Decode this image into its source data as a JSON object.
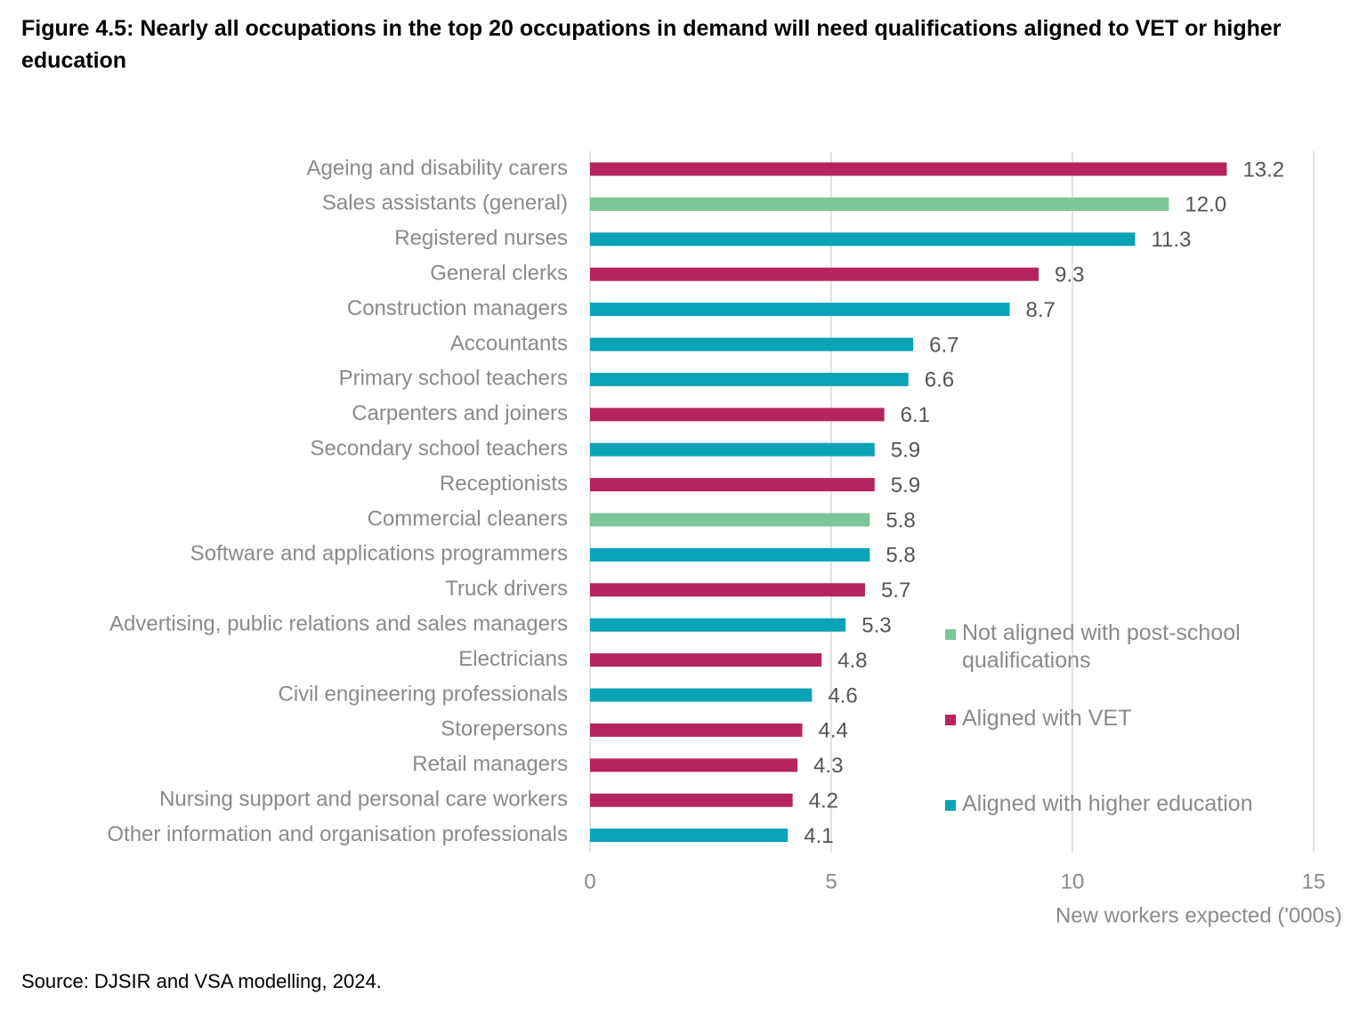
{
  "chart_data": {
    "type": "hbar",
    "title": "Figure 4.5:  Nearly all occupations in the top 20 occupations in demand will need qualifications aligned to VET or higher education",
    "source": "Source: DJSIR and VSA modelling, 2024.",
    "x_label": "New workers expected ('000s)",
    "categories": [
      "Ageing and disability carers",
      "Sales assistants (general)",
      "Registered nurses",
      "General clerks",
      "Construction managers",
      "Accountants",
      "Primary school teachers",
      "Carpenters and joiners",
      "Secondary school teachers",
      "Receptionists",
      "Commercial cleaners",
      "Software and applications programmers",
      "Truck drivers",
      "Advertising, public relations and sales managers",
      "Electricians",
      "Civil engineering professionals",
      "Storepersons",
      "Retail managers",
      "Nursing support and personal care workers",
      "Other information and organisation professionals"
    ],
    "series": [
      {
        "name": "Not aligned with post-school qualifications",
        "color": "#7cc596",
        "values": [
          null,
          12.0,
          null,
          null,
          null,
          null,
          null,
          null,
          null,
          null,
          5.8,
          null,
          null,
          null,
          null,
          null,
          null,
          null,
          null,
          null
        ],
        "value_labels": [
          null,
          "12.0",
          null,
          null,
          null,
          null,
          null,
          null,
          null,
          null,
          "5.8",
          null,
          null,
          null,
          null,
          null,
          null,
          null,
          null,
          null
        ]
      },
      {
        "name": "Aligned with VET",
        "color": "#b5245e",
        "values": [
          13.2,
          null,
          null,
          9.3,
          null,
          null,
          null,
          6.1,
          null,
          5.9,
          null,
          null,
          5.7,
          null,
          4.8,
          null,
          4.4,
          4.3,
          4.2,
          null
        ],
        "value_labels": [
          "13.2",
          null,
          null,
          "9.3",
          null,
          null,
          null,
          "6.1",
          null,
          "5.9",
          null,
          null,
          "5.7",
          null,
          "4.8",
          null,
          "4.4",
          "4.3",
          "4.2",
          null
        ]
      },
      {
        "name": "Aligned with higher education",
        "color": "#0aa2b5",
        "values": [
          null,
          null,
          11.3,
          null,
          8.7,
          6.7,
          6.6,
          null,
          5.9,
          null,
          null,
          5.8,
          null,
          5.3,
          null,
          4.6,
          null,
          null,
          null,
          4.1
        ],
        "value_labels": [
          null,
          null,
          "11.3",
          null,
          "8.7",
          "6.7",
          "6.6",
          null,
          "5.9",
          null,
          null,
          "5.8",
          null,
          "5.3",
          null,
          "4.6",
          null,
          null,
          null,
          "4.1"
        ]
      }
    ],
    "xlim": [
      0,
      15
    ],
    "xticks": [
      0,
      5,
      10,
      15
    ],
    "grid": true
  }
}
